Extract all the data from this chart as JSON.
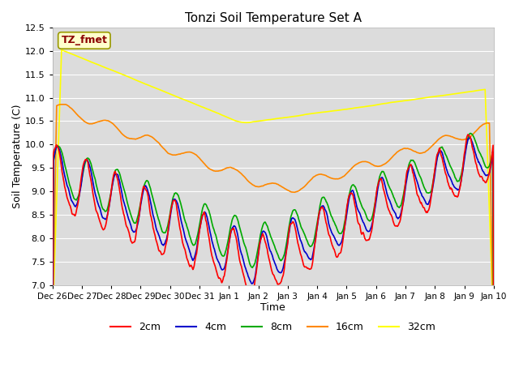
{
  "title": "Tonzi Soil Temperature Set A",
  "xlabel": "Time",
  "ylabel": "Soil Temperature (C)",
  "ylim": [
    7.0,
    12.5
  ],
  "yticks": [
    7.0,
    7.5,
    8.0,
    8.5,
    9.0,
    9.5,
    10.0,
    10.5,
    11.0,
    11.5,
    12.0,
    12.5
  ],
  "xtick_labels": [
    "Dec 26",
    "Dec 27",
    "Dec 28",
    "Dec 29",
    "Dec 30",
    "Dec 31",
    "Jan 1",
    "Jan 2",
    "Jan 3",
    "Jan 4",
    "Jan 5",
    "Jan 6",
    "Jan 7",
    "Jan 8",
    "Jan 9",
    "Jan 10"
  ],
  "legend_label": "TZ_fmet",
  "legend_bg": "#ffffcc",
  "legend_text_color": "#8b0000",
  "series_colors": {
    "2cm": "#ff0000",
    "4cm": "#0000cc",
    "8cm": "#00aa00",
    "16cm": "#ff8800",
    "32cm": "#ffff00"
  },
  "series_labels": [
    "2cm",
    "4cm",
    "8cm",
    "16cm",
    "32cm"
  ],
  "axes_bg": "#dcdcdc",
  "grid_color": "#ffffff",
  "n_points": 720
}
